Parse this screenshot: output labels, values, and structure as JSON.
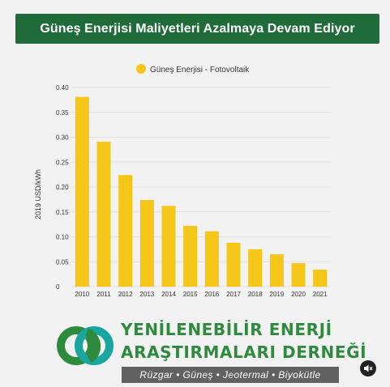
{
  "header": {
    "title": "Güneş Enerjisi Maliyetleri Azalmaya Devam Ediyor"
  },
  "chart_data": {
    "type": "bar",
    "categories": [
      "2010",
      "2011",
      "2012",
      "2013",
      "2014",
      "2015",
      "2016",
      "2017",
      "2018",
      "2019",
      "2020",
      "2021"
    ],
    "series": [
      {
        "name": "Güneş Enerjisi - Fotovoltaik",
        "values": [
          0.381,
          0.291,
          0.224,
          0.174,
          0.162,
          0.122,
          0.111,
          0.088,
          0.075,
          0.065,
          0.047,
          0.034
        ]
      }
    ],
    "ylabel": "2019 USD/kWh",
    "ylim": [
      0,
      0.4
    ],
    "yticks": [
      "0",
      "0.05",
      "0.10",
      "0.15",
      "0.20",
      "0.25",
      "0.30",
      "0.35",
      "0.40"
    ],
    "grid": true,
    "legend": "top-center",
    "bar_color": "#f5c518"
  },
  "logo": {
    "line1": "YENİLENEBİLİR ENERJİ",
    "line2": "ARAŞTIRMALARI DERNEĞİ",
    "tagline": "Rüzgar  •  Güneş  •  Jeotermal  •  Biyokütle",
    "color_dark_green": "#2e8b3e",
    "color_teal": "#1aa6a0"
  },
  "controls": {
    "mute_icon": "speaker-muted-icon"
  }
}
